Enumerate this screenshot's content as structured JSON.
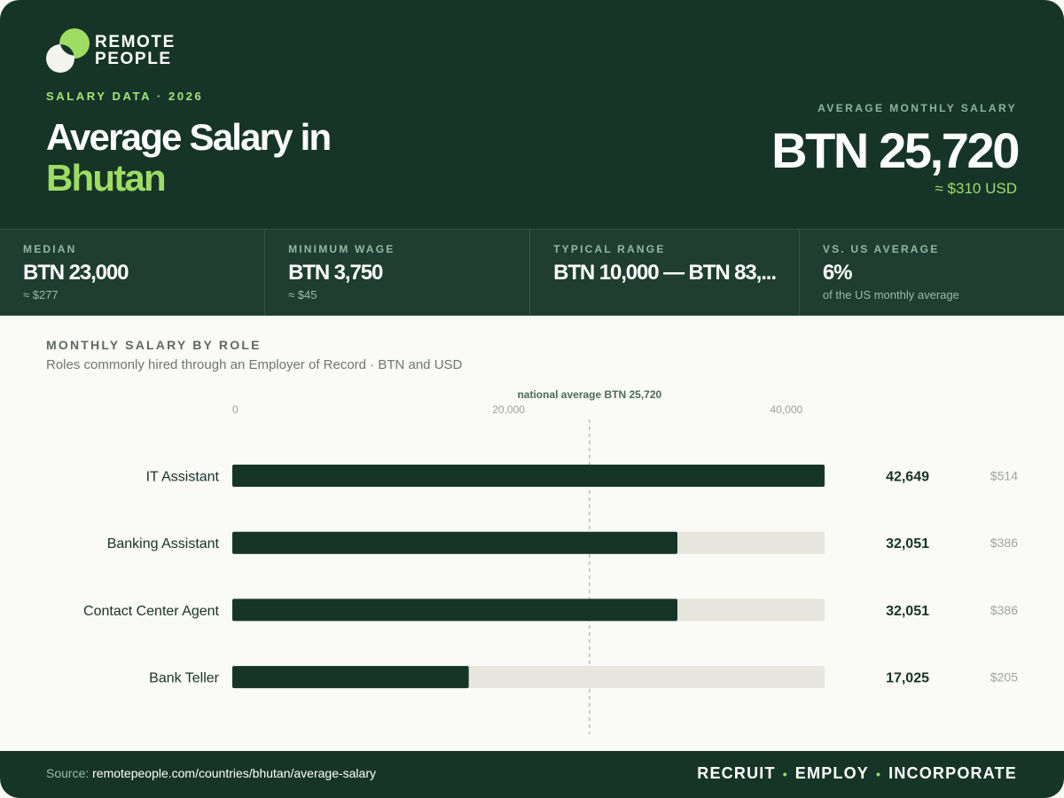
{
  "brand": {
    "line1": "REMOTE",
    "line2": "PEOPLE"
  },
  "header": {
    "eyebrow": "SALARY DATA · 2026",
    "title_line1": "Average Salary in",
    "title_line2": "Bhutan",
    "avg_label": "AVERAGE MONTHLY SALARY",
    "avg_value": "BTN 25,720",
    "avg_usd": "≈ $310 USD"
  },
  "stats": [
    {
      "label": "MEDIAN",
      "value": "BTN 23,000",
      "sub": "≈ $277"
    },
    {
      "label": "MINIMUM WAGE",
      "value": "BTN 3,750",
      "sub": "≈ $45"
    },
    {
      "label": "TYPICAL RANGE",
      "value": "BTN 10,000 — BTN 83,...",
      "sub": ""
    },
    {
      "label": "VS. US AVERAGE",
      "value": "6%",
      "sub": "of the US monthly average"
    }
  ],
  "section": {
    "title": "MONTHLY SALARY BY ROLE",
    "subtitle": "Roles commonly hired through an Employer of Record · BTN and USD"
  },
  "chart_data": {
    "type": "bar",
    "orientation": "horizontal",
    "categories": [
      "IT Assistant",
      "Banking Assistant",
      "Contact Center Agent",
      "Bank Teller"
    ],
    "values": [
      42649,
      32051,
      32051,
      17025
    ],
    "value_labels": [
      "42,649",
      "32,051",
      "32,051",
      "17,025"
    ],
    "usd_labels": [
      "$514",
      "$386",
      "$386",
      "$205"
    ],
    "xlim": [
      0,
      42649
    ],
    "ticks": [
      0,
      20000,
      40000
    ],
    "tick_labels": [
      "0",
      "20,000",
      "40,000"
    ],
    "reference_line": {
      "value": 25720,
      "label": "national average BTN 25,720"
    },
    "colors": {
      "bar": "#163528",
      "track": "#e6e6de",
      "ref": "#9aa39c",
      "ref_label": "#4c6b57"
    }
  },
  "footer": {
    "source_prefix": "Source:",
    "source_url": "remotepeople.com/countries/bhutan/average-salary",
    "tag1": "RECRUIT",
    "tag2": "EMPLOY",
    "tag3": "INCORPORATE",
    "sep": "•"
  },
  "colors": {
    "brand_dark": "#163528",
    "accent": "#9fdc63"
  }
}
